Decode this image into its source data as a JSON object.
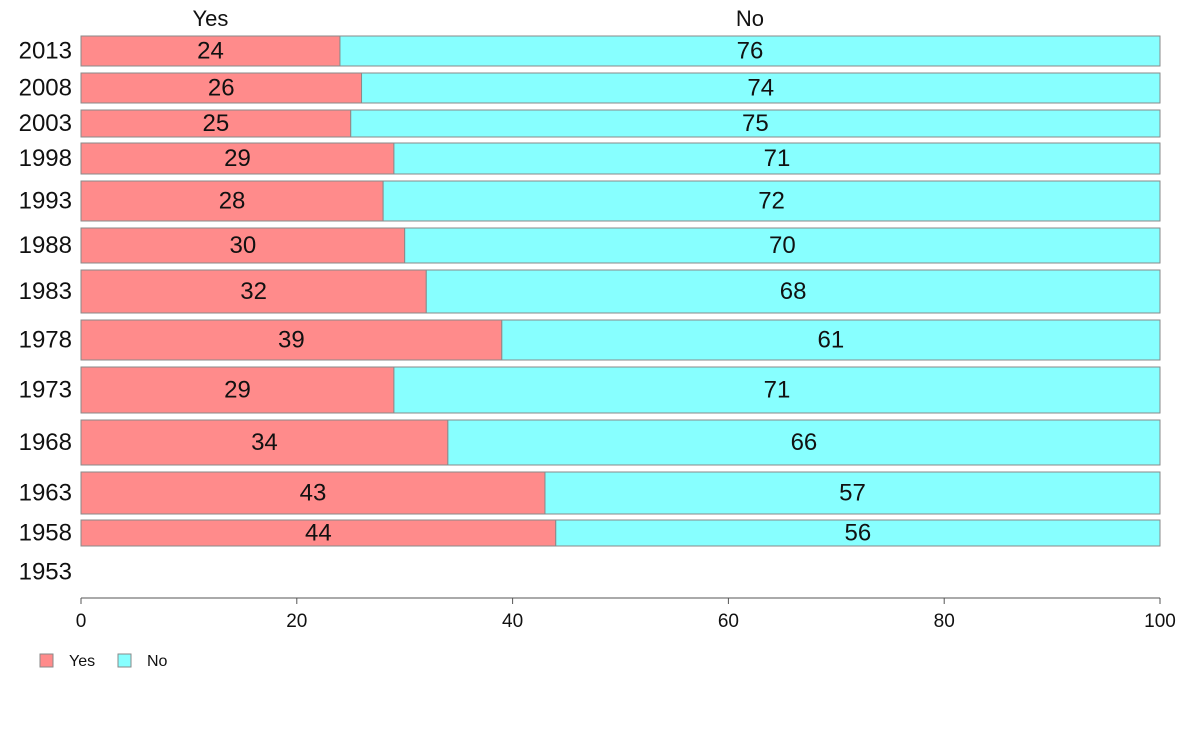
{
  "chart_data": {
    "type": "bar",
    "orientation": "horizontal",
    "stacked": true,
    "categories": [
      "2013",
      "2008",
      "2003",
      "1998",
      "1993",
      "1988",
      "1983",
      "1978",
      "1973",
      "1968",
      "1963",
      "1958",
      "1953"
    ],
    "series": [
      {
        "name": "Yes",
        "color": "#ff8b8b",
        "values": [
          24,
          26,
          25,
          29,
          28,
          30,
          32,
          39,
          29,
          34,
          43,
          44,
          null
        ]
      },
      {
        "name": "No",
        "color": "#87ffff",
        "values": [
          76,
          74,
          75,
          71,
          72,
          70,
          68,
          61,
          71,
          66,
          57,
          56,
          null
        ]
      }
    ],
    "xlim": [
      0,
      100
    ],
    "xticks": [
      0,
      20,
      40,
      60,
      80,
      100
    ],
    "column_headers": [
      "Yes",
      "No"
    ],
    "legend": {
      "position": "bottom-left",
      "items": [
        "Yes",
        "No"
      ]
    },
    "grid": false,
    "title": "",
    "xlabel": "",
    "ylabel": ""
  }
}
